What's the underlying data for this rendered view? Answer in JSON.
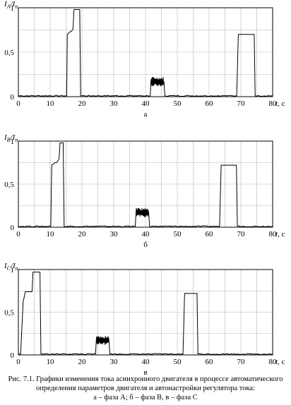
{
  "figure": {
    "caption_line1": "Рис. 7.1. Графики изменения тока асинхронного двигателя в процессе автоматического",
    "caption_line2": "определения параметров двигателя и автонастройки регулятора тока:",
    "caption_line3": "а – фаза А; б – фаза В, в – фаза С"
  },
  "chart_data": [
    {
      "type": "line",
      "panel_label": "а",
      "ylabel_main": "I",
      "ylabel_sub": "A",
      "ylabel_div": "/",
      "ylabel_den_main": "I",
      "ylabel_den_sub": "n",
      "xlabel_var": "t",
      "xlabel_unit": ", с",
      "xlim": [
        0,
        80
      ],
      "ylim": [
        0,
        1
      ],
      "xticks": [
        0,
        10,
        20,
        30,
        40,
        50,
        60,
        70,
        80
      ],
      "xtick_labels": [
        "0",
        "10",
        "20",
        "30",
        "40",
        "50",
        "60",
        "70",
        "80"
      ],
      "yticks": [
        0,
        0.5,
        1
      ],
      "ytick_labels": [
        "0",
        "0,5",
        "1"
      ],
      "grid": true,
      "series": [
        {
          "x": [
            0,
            15.2,
            15.4,
            16.2,
            16.6,
            17.2,
            17.5,
            19.3,
            19.6,
            41.5,
            41.7,
            45.8,
            46.1,
            68.7,
            69.2,
            74.2,
            74.5,
            80
          ],
          "y": [
            0.01,
            0.01,
            0.7,
            0.73,
            0.73,
            0.76,
            0.98,
            0.98,
            0.01,
            0.01,
            0.17,
            0.17,
            0.01,
            0.01,
            0.7,
            0.7,
            0.01,
            0.01
          ],
          "ripple_segments": [
            [
              41.7,
              45.8,
              0.05
            ],
            [
              69.4,
              74.2,
              0.025
            ]
          ]
        }
      ]
    },
    {
      "type": "line",
      "panel_label": "б",
      "ylabel_main": "I",
      "ylabel_sub": "B",
      "ylabel_div": "/",
      "ylabel_den_main": "I",
      "ylabel_den_sub": "n",
      "xlabel_var": "t",
      "xlabel_unit": ", с",
      "xlim": [
        0,
        80
      ],
      "ylim": [
        0,
        1
      ],
      "xticks": [
        0,
        10,
        20,
        30,
        40,
        50,
        60,
        70,
        80
      ],
      "xtick_labels": [
        "0",
        "10",
        "20",
        "30",
        "40",
        "50",
        "60",
        "70",
        "80"
      ],
      "yticks": [
        0,
        0.5,
        1
      ],
      "ytick_labels": [
        "0",
        "0,5",
        "1"
      ],
      "grid": true,
      "series": [
        {
          "x": [
            0,
            10.2,
            10.5,
            11.5,
            12.0,
            12.8,
            13.1,
            14.1,
            14.4,
            36.8,
            37.0,
            41.0,
            41.3,
            63.3,
            63.8,
            68.6,
            68.9,
            80
          ],
          "y": [
            0.01,
            0.01,
            0.72,
            0.75,
            0.75,
            0.79,
            0.98,
            0.98,
            0.01,
            0.01,
            0.17,
            0.17,
            0.01,
            0.01,
            0.72,
            0.72,
            0.01,
            0.01
          ],
          "ripple_segments": [
            [
              37.0,
              41.0,
              0.05
            ],
            [
              64.0,
              68.6,
              0.025
            ]
          ]
        }
      ]
    },
    {
      "type": "line",
      "panel_label": "в",
      "ylabel_main": "I",
      "ylabel_sub": "C",
      "ylabel_div": "/",
      "ylabel_den_main": "I",
      "ylabel_den_sub": "n",
      "xlabel_var": "t",
      "xlabel_unit": ", с",
      "xlim": [
        0,
        80
      ],
      "ylim": [
        0,
        1
      ],
      "xticks": [
        0,
        10,
        20,
        30,
        40,
        50,
        60,
        70,
        80
      ],
      "xtick_labels": [
        "0",
        "10",
        "20",
        "30",
        "40",
        "50",
        "60",
        "70",
        "80"
      ],
      "yticks": [
        0,
        0.5,
        1
      ],
      "ytick_labels": [
        "0",
        "0,5",
        "1"
      ],
      "grid": true,
      "series": [
        {
          "x": [
            0,
            0.7,
            1.5,
            2.2,
            4.3,
            4.6,
            6.8,
            7.1,
            24.3,
            24.5,
            28.5,
            28.8,
            51.8,
            52.3,
            56.2,
            56.5,
            80
          ],
          "y": [
            0.01,
            0.01,
            0.62,
            0.74,
            0.74,
            0.97,
            0.97,
            0.01,
            0.01,
            0.17,
            0.17,
            0.01,
            0.01,
            0.72,
            0.72,
            0.01,
            0.01
          ],
          "ripple_segments": [
            [
              24.5,
              28.5,
              0.05
            ],
            [
              52.5,
              56.2,
              0.025
            ]
          ]
        }
      ]
    }
  ]
}
